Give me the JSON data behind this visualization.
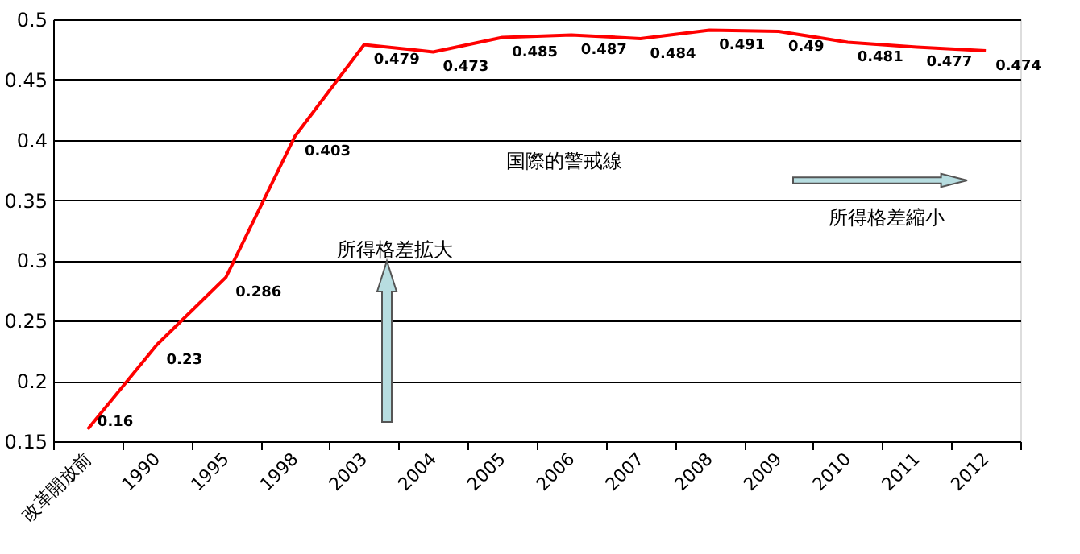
{
  "chart_data": {
    "type": "line",
    "categories": [
      "改革開放前",
      "1990",
      "1995",
      "1998",
      "2003",
      "2004",
      "2005",
      "2006",
      "2007",
      "2008",
      "2009",
      "2010",
      "2011",
      "2012"
    ],
    "series": [
      {
        "color": "#ff0000",
        "values": [
          0.16,
          0.23,
          0.286,
          0.403,
          0.479,
          0.473,
          0.485,
          0.487,
          0.484,
          0.491,
          0.49,
          0.481,
          0.477,
          0.474
        ]
      }
    ],
    "ylim": [
      0.15,
      0.5
    ],
    "yticks": [
      0.15,
      0.2,
      0.25,
      0.3,
      0.35,
      0.4,
      0.45,
      0.5
    ],
    "grid": "y",
    "data_labels": true,
    "marker": "none",
    "line_style": "solid",
    "legend": false,
    "annotations": [
      "国際的警戒線",
      "所得格差拡大",
      "所得格差縮小"
    ]
  }
}
